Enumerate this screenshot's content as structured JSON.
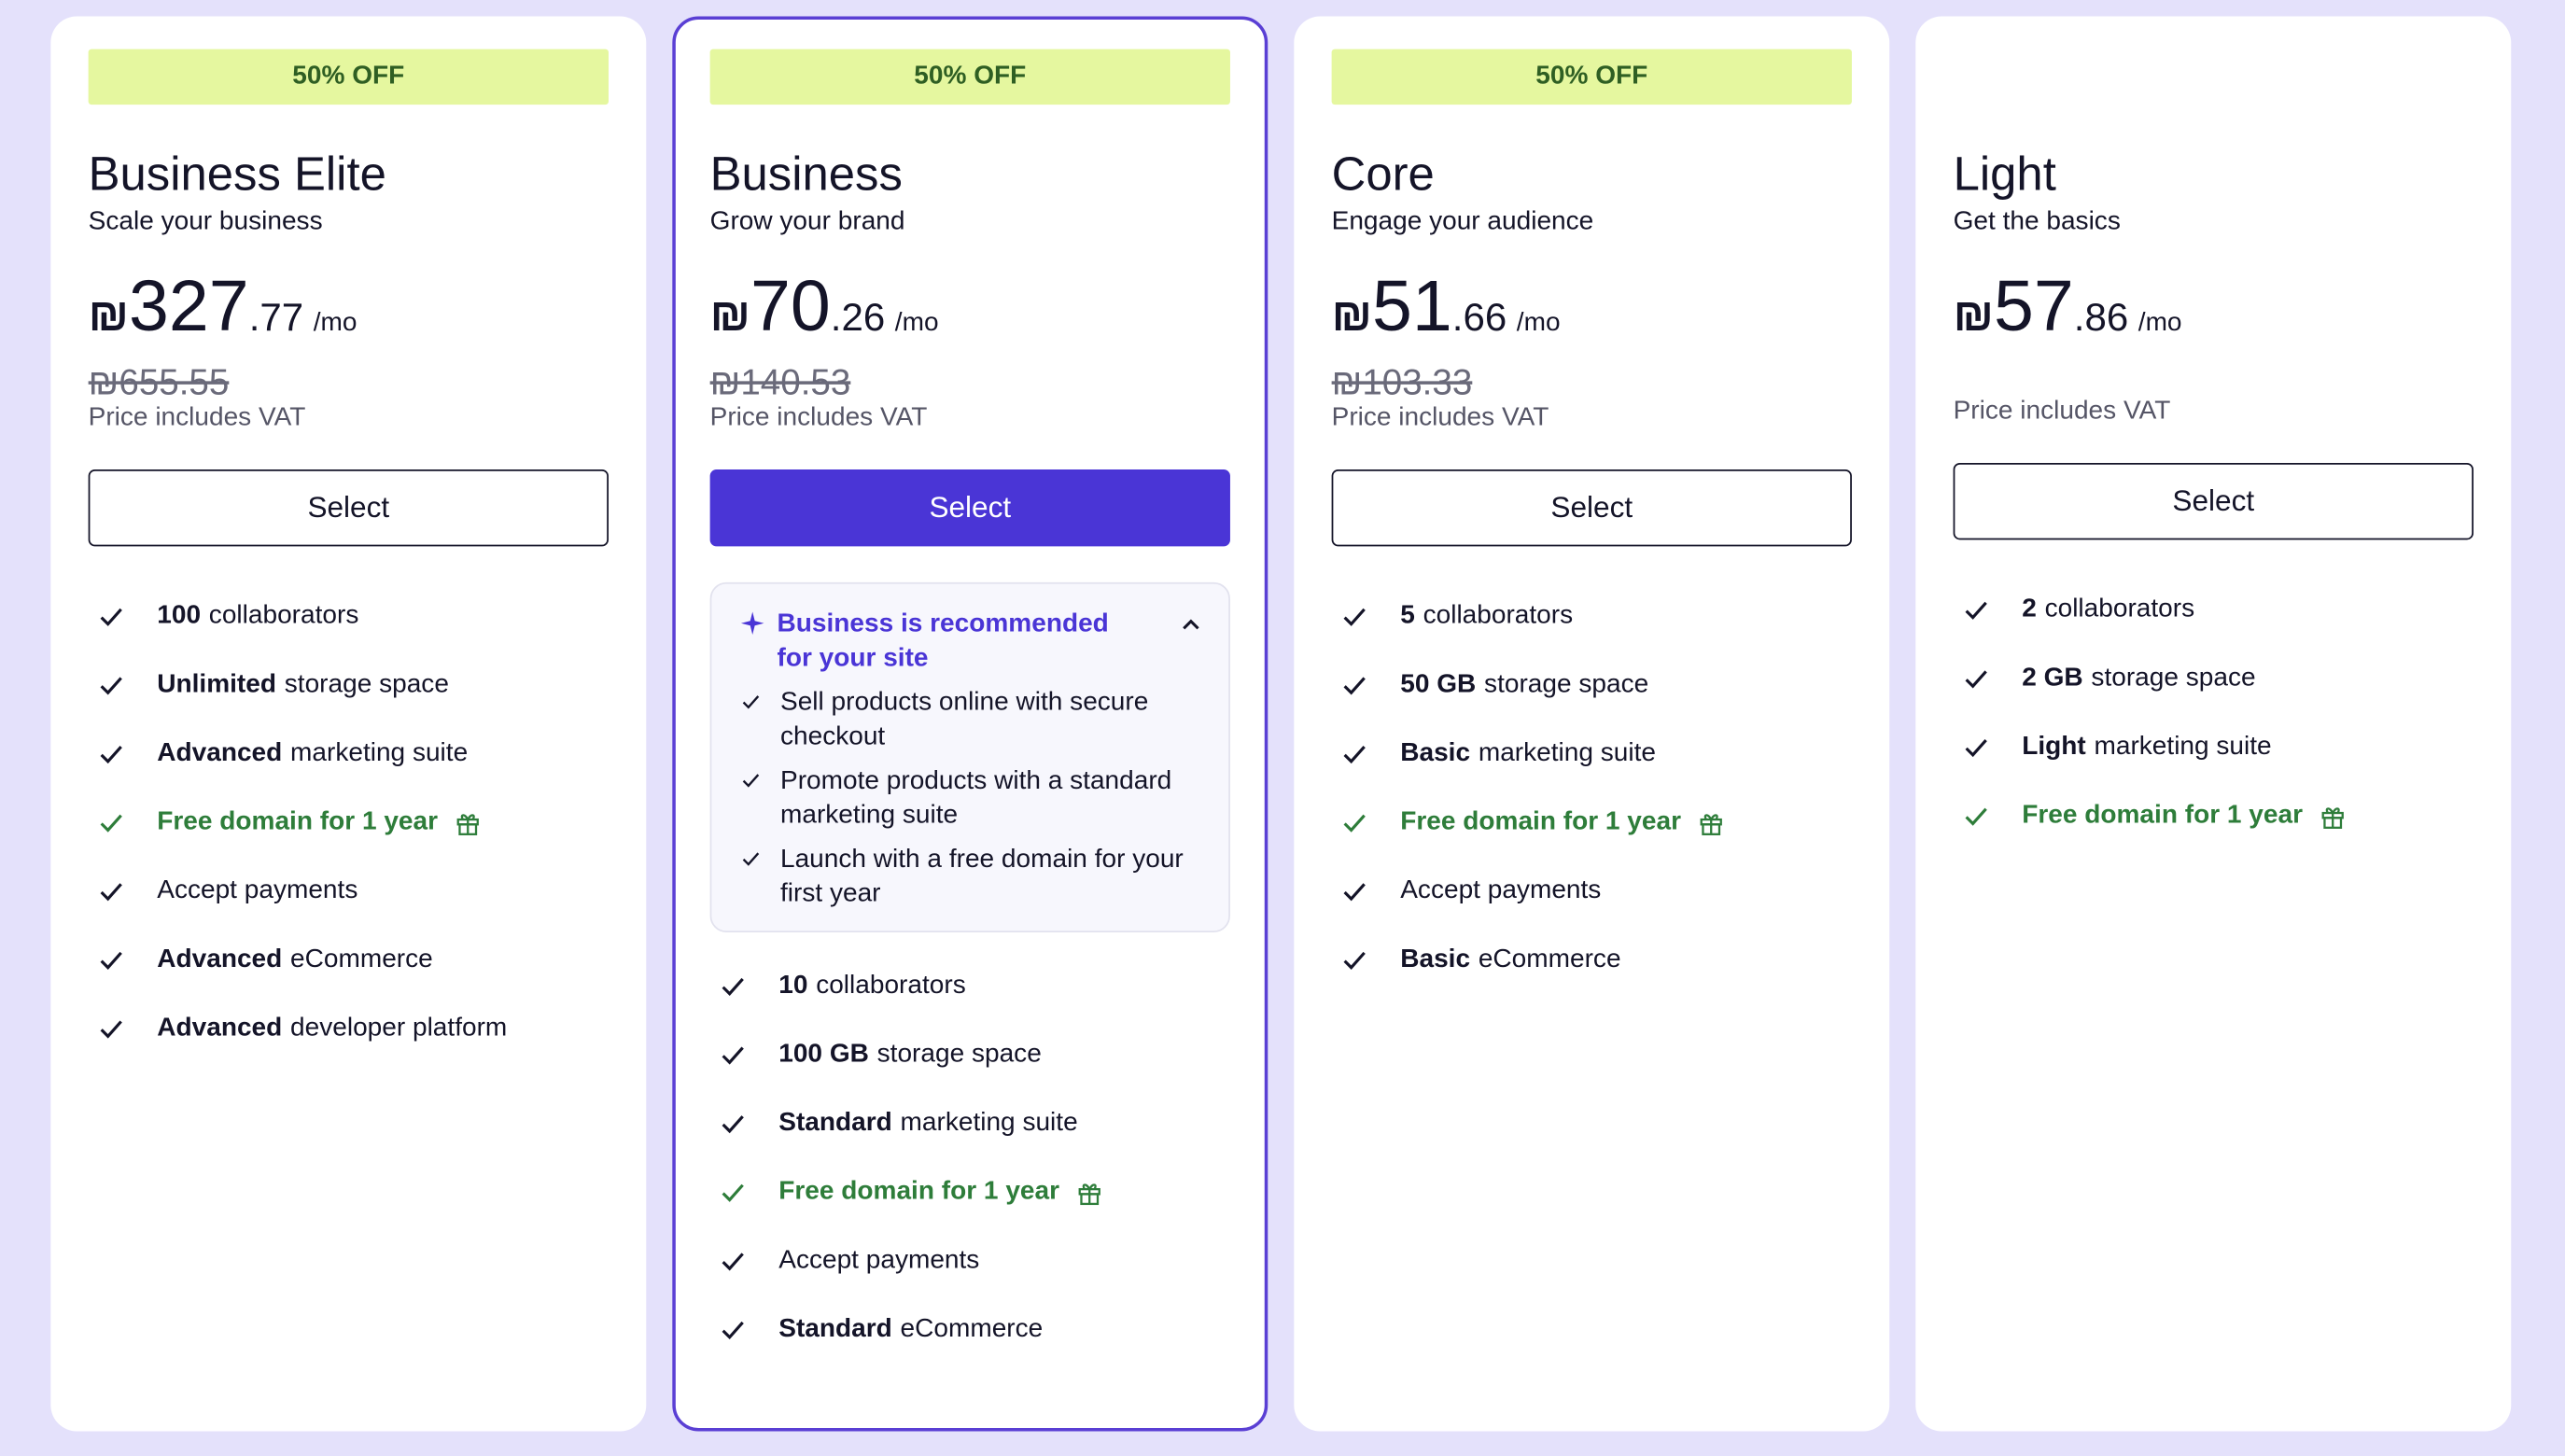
{
  "plans": [
    {
      "badge": "50% OFF",
      "name": "Business Elite",
      "tagline": "Scale your business",
      "currency": "₪",
      "price_whole": "327",
      "price_cents": ".77",
      "period": "/mo",
      "old_price": "₪655.55",
      "vat_note": "Price includes VAT",
      "button": "Select",
      "featured": false,
      "features": [
        {
          "bold": "100",
          "text": "collaborators"
        },
        {
          "bold": "Unlimited",
          "text": "storage space"
        },
        {
          "bold": "Advanced",
          "text": "marketing suite"
        },
        {
          "text": "Free domain for 1 year",
          "color": "#2e7d3a",
          "gift": true
        },
        {
          "text": "Accept payments"
        },
        {
          "bold": "Advanced",
          "text": "eCommerce"
        },
        {
          "bold": "Advanced",
          "text": "developer platform"
        }
      ]
    },
    {
      "badge": "50% OFF",
      "name": "Business",
      "tagline": "Grow your brand",
      "currency": "₪",
      "price_whole": "70",
      "price_cents": ".26",
      "period": "/mo",
      "old_price": "₪140.53",
      "vat_note": "Price includes VAT",
      "button": "Select",
      "featured": true,
      "recommendation": {
        "title": "Business is recommended for your site",
        "items": [
          "Sell products online with secure checkout",
          "Promote products with a standard marketing suite",
          "Launch with a free domain for your first year"
        ]
      },
      "features": [
        {
          "bold": "10",
          "text": "collaborators"
        },
        {
          "bold": "100 GB",
          "text": "storage space"
        },
        {
          "bold": "Standard",
          "text": "marketing suite"
        },
        {
          "text": "Free domain for 1 year",
          "color": "#2e7d3a",
          "gift": true
        },
        {
          "text": "Accept payments"
        },
        {
          "bold": "Standard",
          "text": "eCommerce"
        }
      ]
    },
    {
      "badge": "50% OFF",
      "name": "Core",
      "tagline": "Engage your audience",
      "currency": "₪",
      "price_whole": "51",
      "price_cents": ".66",
      "period": "/mo",
      "old_price": "₪103.33",
      "vat_note": "Price includes VAT",
      "button": "Select",
      "featured": false,
      "features": [
        {
          "bold": "5",
          "text": "collaborators"
        },
        {
          "bold": "50 GB",
          "text": "storage space"
        },
        {
          "bold": "Basic",
          "text": "marketing suite"
        },
        {
          "text": "Free domain for 1 year",
          "color": "#2e7d3a",
          "gift": true
        },
        {
          "text": "Accept payments"
        },
        {
          "bold": "Basic",
          "text": "eCommerce"
        }
      ]
    },
    {
      "name": "Light",
      "tagline": "Get the basics",
      "currency": "₪",
      "price_whole": "57",
      "price_cents": ".86",
      "period": "/mo",
      "vat_note": "Price includes VAT",
      "button": "Select",
      "featured": false,
      "features": [
        {
          "bold": "2",
          "text": "collaborators"
        },
        {
          "bold": "2 GB",
          "text": "storage space"
        },
        {
          "bold": "Light",
          "text": "marketing suite"
        },
        {
          "text": "Free domain for 1 year",
          "color": "#2e7d3a",
          "gift": true
        }
      ]
    }
  ]
}
